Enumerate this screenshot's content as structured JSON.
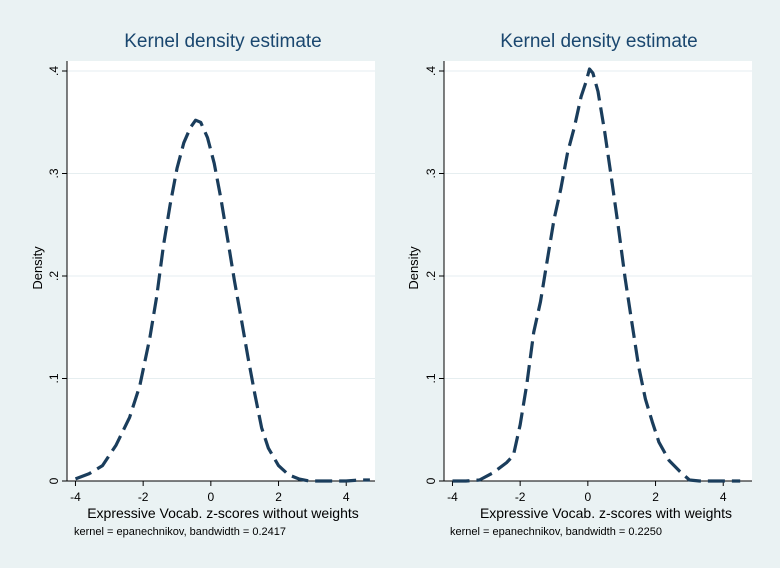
{
  "chart_data": [
    {
      "type": "line",
      "title": "Kernel density estimate",
      "xlabel": "Expressive Vocab. z-scores without weights",
      "ylabel": "Density",
      "note": "kernel = epanechnikov, bandwidth = 0.2417",
      "xlim": [
        -4.25,
        4.85
      ],
      "ylim": [
        0,
        0.4
      ],
      "xticks": [
        -4,
        -2,
        0,
        2,
        4
      ],
      "xtick_labels": [
        "-4",
        "-2",
        "0",
        "2",
        "4"
      ],
      "yticks": [
        0,
        0.1,
        0.2,
        0.3,
        0.4
      ],
      "ytick_labels": [
        "0",
        ".1",
        ".2",
        ".3",
        ".4"
      ],
      "series": [
        {
          "name": "density",
          "color": "#1a3d5c",
          "x": [
            -4.0,
            -3.6,
            -3.2,
            -2.8,
            -2.4,
            -2.1,
            -1.8,
            -1.6,
            -1.4,
            -1.2,
            -1.0,
            -0.8,
            -0.6,
            -0.45,
            -0.3,
            -0.1,
            0.1,
            0.3,
            0.5,
            0.7,
            0.9,
            1.1,
            1.3,
            1.5,
            1.7,
            2.0,
            2.3,
            2.6,
            2.9,
            3.2,
            3.6,
            4.0,
            4.4,
            4.7
          ],
          "y": [
            0.002,
            0.007,
            0.015,
            0.035,
            0.062,
            0.093,
            0.14,
            0.18,
            0.23,
            0.27,
            0.305,
            0.33,
            0.345,
            0.352,
            0.35,
            0.335,
            0.31,
            0.275,
            0.235,
            0.195,
            0.158,
            0.12,
            0.085,
            0.052,
            0.032,
            0.015,
            0.006,
            0.002,
            0.0,
            0.0,
            0.0,
            0.0,
            0.001,
            0.001
          ]
        }
      ]
    },
    {
      "type": "line",
      "title": "Kernel density estimate",
      "xlabel": "Expressive Vocab. z-scores with weights",
      "ylabel": "Density",
      "note": "kernel = epanechnikov, bandwidth = 0.2250",
      "xlim": [
        -4.25,
        4.85
      ],
      "ylim": [
        0,
        0.4
      ],
      "xticks": [
        -4,
        -2,
        0,
        2,
        4
      ],
      "xtick_labels": [
        "-4",
        "-2",
        "0",
        "2",
        "4"
      ],
      "yticks": [
        0,
        0.1,
        0.2,
        0.3,
        0.4
      ],
      "ytick_labels": [
        "0",
        ".1",
        ".2",
        ".3",
        ".4"
      ],
      "series": [
        {
          "name": "density",
          "color": "#1a3d5c",
          "x": [
            -4.0,
            -3.6,
            -3.2,
            -2.8,
            -2.4,
            -2.2,
            -2.0,
            -1.8,
            -1.6,
            -1.4,
            -1.2,
            -1.0,
            -0.8,
            -0.6,
            -0.4,
            -0.2,
            -0.05,
            0.05,
            0.15,
            0.3,
            0.5,
            0.7,
            0.9,
            1.1,
            1.3,
            1.5,
            1.7,
            1.9,
            2.1,
            2.4,
            2.7,
            3.0,
            3.3,
            3.6,
            4.0,
            4.5
          ],
          "y": [
            0.0,
            0.0,
            0.001,
            0.008,
            0.018,
            0.025,
            0.055,
            0.095,
            0.145,
            0.175,
            0.215,
            0.255,
            0.285,
            0.32,
            0.345,
            0.375,
            0.39,
            0.402,
            0.398,
            0.38,
            0.34,
            0.295,
            0.248,
            0.198,
            0.155,
            0.112,
            0.08,
            0.058,
            0.038,
            0.02,
            0.01,
            0.001,
            0.0,
            0.0,
            0.0,
            0.0
          ]
        }
      ]
    }
  ]
}
